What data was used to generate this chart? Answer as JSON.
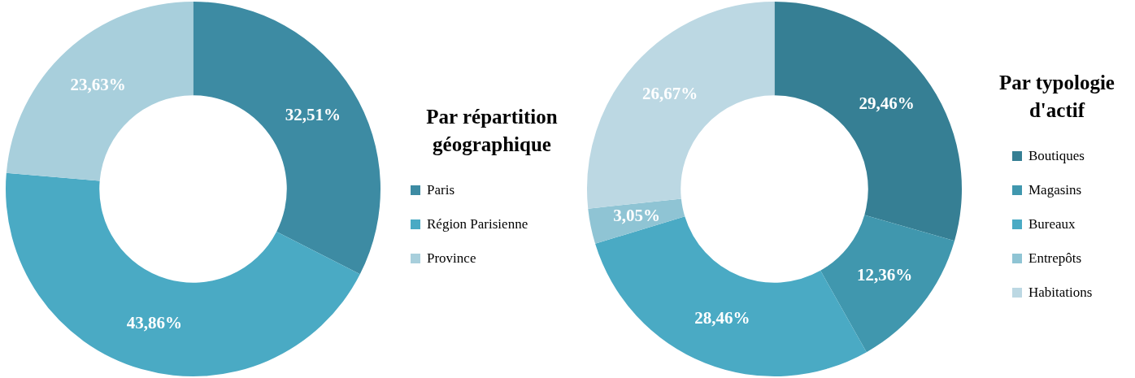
{
  "chart_data": [
    {
      "type": "donut",
      "legend_title": "Par répartition géographique",
      "categories": [
        "Paris",
        "Région Parisienne",
        "Province"
      ],
      "values": [
        32.51,
        43.86,
        23.63
      ],
      "colors": [
        "#3d8ba3",
        "#4aaac4",
        "#a8cfdc"
      ],
      "value_labels": [
        "32,51%",
        "43,86%",
        "23,63%"
      ],
      "legend": "right"
    },
    {
      "type": "donut",
      "legend_title": "Par typologie d'actif",
      "categories": [
        "Boutiques",
        "Magasins",
        "Bureaux",
        "Entrepôts",
        "Habitations"
      ],
      "values": [
        29.46,
        12.36,
        28.46,
        3.05,
        26.67
      ],
      "colors": [
        "#367f94",
        "#4097ae",
        "#4aaac4",
        "#8fc4d4",
        "#bcd8e3"
      ],
      "value_labels": [
        "29,46%",
        "12,36%",
        "28,46%",
        "3,05%",
        "26,67%"
      ],
      "legend": "right"
    }
  ]
}
